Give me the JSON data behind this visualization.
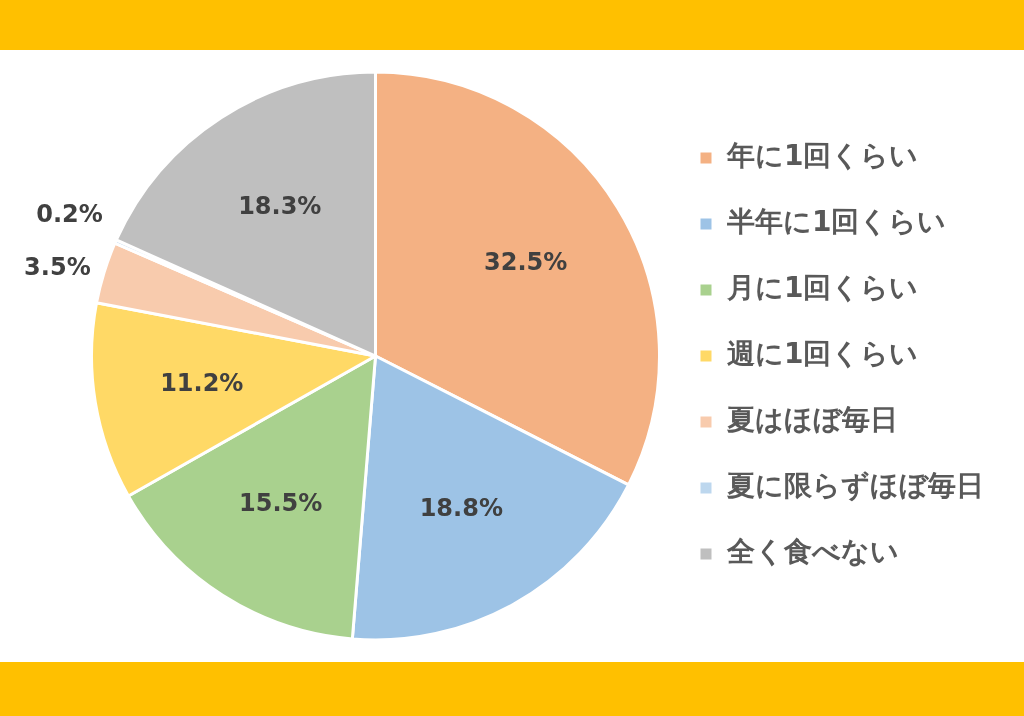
{
  "chart_data": {
    "type": "pie",
    "categories": [
      "年に1回くらい",
      "半年に1回くらい",
      "月に1回くらい",
      "週に1回くらい",
      "夏はほぼ毎日",
      "夏に限らずほぼ毎日",
      "全く食べない"
    ],
    "values": [
      32.5,
      18.8,
      15.5,
      11.2,
      3.5,
      0.2,
      18.3
    ],
    "colors": [
      "#f4b183",
      "#9dc3e6",
      "#a9d18e",
      "#ffd966",
      "#f8cbad",
      "#bdd7ee",
      "#bfbfbf"
    ],
    "value_labels": [
      "32.5%",
      "18.8%",
      "15.5%",
      "11.2%",
      "3.5%",
      "0.2%",
      "18.3%"
    ],
    "legend": "right"
  }
}
